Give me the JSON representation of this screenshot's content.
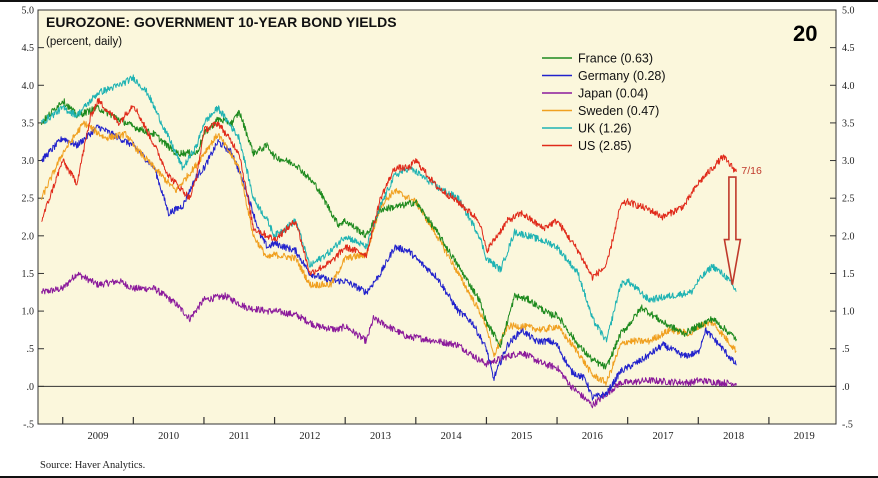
{
  "chart_data": {
    "type": "line",
    "title": "EUROZONE: GOVERNMENT 10-YEAR BOND YIELDS",
    "subtitle": "(percent, daily)",
    "badge": "20",
    "source": "Source: Haver Analytics.",
    "xlabel": "",
    "ylabel": "",
    "xlim": [
      2008.65,
      2019.95
    ],
    "ylim": [
      -0.5,
      5.0
    ],
    "y_ticks": [
      "5.0",
      "4.5",
      "4.0",
      "3.5",
      "3.0",
      "2.5",
      "2.0",
      "1.5",
      "1.0",
      ".5",
      ".0",
      "-.5"
    ],
    "y_tick_values": [
      5.0,
      4.5,
      4.0,
      3.5,
      3.0,
      2.5,
      2.0,
      1.5,
      1.0,
      0.5,
      0.0,
      -0.5
    ],
    "x_ticks": [
      "2009",
      "2010",
      "2011",
      "2012",
      "2013",
      "2014",
      "2015",
      "2016",
      "2017",
      "2018",
      "2019"
    ],
    "zero_line": 0.0,
    "grid": false,
    "legend_position": "top-right",
    "annotation": {
      "text": "7/16",
      "x": 2018.54,
      "color": "#c0392b"
    },
    "series": [
      {
        "name": "France (0.63)",
        "color": "#1e8a1e",
        "x": [
          2008.7,
          2009.0,
          2009.2,
          2009.5,
          2009.8,
          2010.0,
          2010.3,
          2010.6,
          2010.9,
          2011.0,
          2011.2,
          2011.4,
          2011.5,
          2011.7,
          2011.9,
          2012.0,
          2012.3,
          2012.6,
          2012.9,
          2013.0,
          2013.3,
          2013.5,
          2013.8,
          2014.0,
          2014.3,
          2014.6,
          2014.9,
          2015.0,
          2015.2,
          2015.4,
          2015.6,
          2015.9,
          2016.0,
          2016.3,
          2016.5,
          2016.7,
          2016.9,
          2017.0,
          2017.2,
          2017.5,
          2017.8,
          2018.0,
          2018.2,
          2018.54
        ],
        "values": [
          3.5,
          3.8,
          3.6,
          3.7,
          3.55,
          3.45,
          3.35,
          3.1,
          3.1,
          3.35,
          3.55,
          3.5,
          3.65,
          3.1,
          3.2,
          3.05,
          2.95,
          2.65,
          2.15,
          2.2,
          2.0,
          2.35,
          2.4,
          2.45,
          2.05,
          1.6,
          1.15,
          0.85,
          0.55,
          1.2,
          1.15,
          0.95,
          0.95,
          0.55,
          0.35,
          0.25,
          0.7,
          0.8,
          1.05,
          0.85,
          0.7,
          0.8,
          0.9,
          0.63
        ]
      },
      {
        "name": "Germany (0.28)",
        "color": "#2222cc",
        "x": [
          2008.7,
          2009.0,
          2009.2,
          2009.5,
          2009.8,
          2010.0,
          2010.3,
          2010.5,
          2010.7,
          2010.9,
          2011.0,
          2011.2,
          2011.4,
          2011.6,
          2011.8,
          2011.9,
          2012.0,
          2012.3,
          2012.5,
          2012.8,
          2013.0,
          2013.3,
          2013.5,
          2013.7,
          2013.9,
          2014.0,
          2014.3,
          2014.6,
          2014.8,
          2015.0,
          2015.1,
          2015.3,
          2015.5,
          2015.7,
          2015.9,
          2016.0,
          2016.2,
          2016.4,
          2016.5,
          2016.7,
          2016.9,
          2017.0,
          2017.2,
          2017.5,
          2017.8,
          2018.0,
          2018.1,
          2018.3,
          2018.54
        ],
        "values": [
          3.0,
          3.3,
          3.2,
          3.45,
          3.3,
          3.2,
          2.9,
          2.3,
          2.4,
          2.8,
          2.9,
          3.25,
          3.1,
          2.6,
          2.0,
          1.85,
          1.9,
          1.8,
          1.5,
          1.4,
          1.4,
          1.25,
          1.5,
          1.85,
          1.8,
          1.7,
          1.45,
          1.0,
          0.85,
          0.5,
          0.1,
          0.55,
          0.75,
          0.6,
          0.6,
          0.55,
          0.2,
          0.1,
          -0.15,
          -0.1,
          0.2,
          0.25,
          0.35,
          0.55,
          0.4,
          0.45,
          0.75,
          0.55,
          0.28
        ]
      },
      {
        "name": "Japan (0.04)",
        "color": "#8b1a9b",
        "x": [
          2008.7,
          2009.0,
          2009.2,
          2009.5,
          2009.8,
          2010.0,
          2010.3,
          2010.6,
          2010.8,
          2011.0,
          2011.3,
          2011.6,
          2011.9,
          2012.0,
          2012.3,
          2012.6,
          2012.9,
          2013.0,
          2013.3,
          2013.4,
          2013.6,
          2013.9,
          2014.0,
          2014.3,
          2014.6,
          2014.9,
          2015.0,
          2015.3,
          2015.5,
          2015.8,
          2016.0,
          2016.2,
          2016.5,
          2016.7,
          2016.9,
          2017.0,
          2017.3,
          2017.6,
          2017.9,
          2018.0,
          2018.3,
          2018.54
        ],
        "values": [
          1.25,
          1.3,
          1.5,
          1.35,
          1.4,
          1.3,
          1.3,
          1.1,
          0.9,
          1.15,
          1.2,
          1.05,
          1.0,
          1.0,
          0.95,
          0.8,
          0.75,
          0.8,
          0.6,
          0.9,
          0.8,
          0.65,
          0.65,
          0.6,
          0.55,
          0.35,
          0.3,
          0.4,
          0.45,
          0.3,
          0.25,
          0.0,
          -0.25,
          -0.1,
          0.05,
          0.05,
          0.08,
          0.06,
          0.05,
          0.08,
          0.05,
          0.04
        ]
      },
      {
        "name": "Sweden (0.47)",
        "color": "#f0a020",
        "x": [
          2008.7,
          2009.0,
          2009.3,
          2009.6,
          2009.9,
          2010.0,
          2010.3,
          2010.6,
          2010.9,
          2011.0,
          2011.2,
          2011.5,
          2011.7,
          2011.9,
          2012.0,
          2012.3,
          2012.5,
          2012.8,
          2013.0,
          2013.3,
          2013.5,
          2013.7,
          2014.0,
          2014.3,
          2014.6,
          2014.9,
          2015.0,
          2015.1,
          2015.3,
          2015.5,
          2015.8,
          2016.0,
          2016.3,
          2016.5,
          2016.7,
          2016.9,
          2017.0,
          2017.3,
          2017.6,
          2017.9,
          2018.0,
          2018.2,
          2018.54
        ],
        "values": [
          2.5,
          3.1,
          3.5,
          3.3,
          3.35,
          3.2,
          2.9,
          2.6,
          2.95,
          3.1,
          3.35,
          2.9,
          2.0,
          1.7,
          1.75,
          1.7,
          1.35,
          1.35,
          1.7,
          1.75,
          2.4,
          2.6,
          2.45,
          2.0,
          1.5,
          1.0,
          0.8,
          0.4,
          0.8,
          0.8,
          0.75,
          0.8,
          0.45,
          0.15,
          0.05,
          0.55,
          0.6,
          0.6,
          0.75,
          0.7,
          0.8,
          0.85,
          0.47
        ]
      },
      {
        "name": "UK (1.26)",
        "color": "#1fb3b3",
        "x": [
          2008.7,
          2009.0,
          2009.2,
          2009.5,
          2009.8,
          2010.0,
          2010.2,
          2010.5,
          2010.7,
          2010.9,
          2011.0,
          2011.2,
          2011.5,
          2011.7,
          2011.9,
          2012.0,
          2012.3,
          2012.5,
          2012.8,
          2013.0,
          2013.3,
          2013.5,
          2013.7,
          2013.9,
          2014.0,
          2014.3,
          2014.6,
          2014.9,
          2015.0,
          2015.2,
          2015.4,
          2015.6,
          2015.9,
          2016.0,
          2016.3,
          2016.5,
          2016.7,
          2016.9,
          2017.0,
          2017.3,
          2017.6,
          2017.9,
          2018.0,
          2018.2,
          2018.4,
          2018.54
        ],
        "values": [
          3.5,
          3.7,
          3.6,
          3.9,
          4.0,
          4.1,
          3.9,
          3.3,
          2.9,
          3.2,
          3.5,
          3.7,
          3.3,
          2.5,
          2.2,
          2.0,
          2.2,
          1.6,
          1.8,
          2.0,
          1.85,
          2.4,
          2.8,
          2.9,
          2.85,
          2.65,
          2.5,
          2.0,
          1.7,
          1.55,
          2.05,
          2.0,
          1.9,
          1.85,
          1.5,
          0.9,
          0.6,
          1.35,
          1.4,
          1.15,
          1.2,
          1.25,
          1.4,
          1.6,
          1.45,
          1.26
        ]
      },
      {
        "name": "US (2.85)",
        "color": "#e02a1a",
        "x": [
          2008.7,
          2009.0,
          2009.2,
          2009.4,
          2009.5,
          2009.8,
          2010.0,
          2010.3,
          2010.5,
          2010.8,
          2010.9,
          2011.0,
          2011.2,
          2011.5,
          2011.7,
          2011.9,
          2012.0,
          2012.3,
          2012.5,
          2012.8,
          2013.0,
          2013.3,
          2013.5,
          2013.7,
          2013.9,
          2014.0,
          2014.3,
          2014.6,
          2014.9,
          2015.0,
          2015.3,
          2015.5,
          2015.8,
          2016.0,
          2016.3,
          2016.5,
          2016.7,
          2016.9,
          2017.0,
          2017.3,
          2017.5,
          2017.8,
          2018.0,
          2018.2,
          2018.35,
          2018.54
        ],
        "values": [
          2.2,
          3.0,
          2.7,
          3.6,
          3.8,
          3.5,
          3.75,
          3.2,
          2.8,
          2.5,
          2.8,
          3.4,
          3.5,
          3.1,
          2.1,
          2.0,
          1.95,
          2.2,
          1.5,
          1.65,
          1.85,
          1.75,
          2.5,
          2.9,
          2.9,
          3.0,
          2.65,
          2.45,
          2.2,
          1.8,
          2.2,
          2.3,
          2.1,
          2.2,
          1.8,
          1.45,
          1.6,
          2.4,
          2.45,
          2.35,
          2.25,
          2.4,
          2.7,
          2.9,
          3.05,
          2.85
        ]
      }
    ]
  }
}
